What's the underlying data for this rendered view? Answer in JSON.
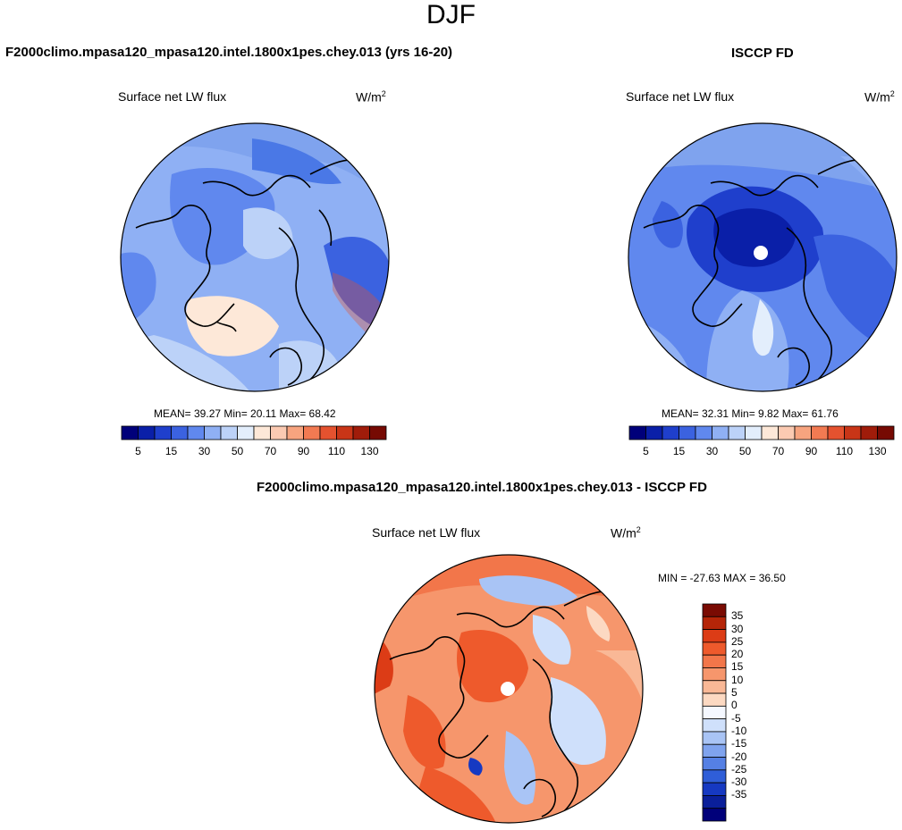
{
  "figure": {
    "season": "DJF",
    "model_title": "F2000climo.mpasa120_mpasa120.intel.1800x1pes.chey.013 (yrs 16-20)",
    "obs_title": "ISCCP FD",
    "diff_title": "F2000climo.mpasa120_mpasa120.intel.1800x1pes.chey.013 - ISCCP FD"
  },
  "panels": {
    "model": {
      "variable": "Surface net LW flux",
      "units_base": "W/m",
      "units_exp": "2",
      "stats": "MEAN=  39.27  Min=  20.11  Max=  68.42"
    },
    "obs": {
      "variable": "Surface net LW flux",
      "units_base": "W/m",
      "units_exp": "2",
      "stats": "MEAN=  32.31  Min=   9.82  Max=  61.76"
    },
    "diff": {
      "variable": "Surface net LW flux",
      "units_base": "W/m",
      "units_exp": "2",
      "stats": "MIN = -27.63 MAX =  36.50"
    }
  },
  "colorbars": {
    "main": {
      "orientation": "horizontal",
      "labels": [
        "5",
        "15",
        "30",
        "50",
        "70",
        "90",
        "110",
        "130"
      ],
      "colors": [
        "#00007a",
        "#0a1fa8",
        "#1f3fcc",
        "#3b62e0",
        "#6088ee",
        "#8fb0f4",
        "#bcd2f8",
        "#e3eefc",
        "#fde8d8",
        "#fbcab2",
        "#f7a47f",
        "#f27a52",
        "#e5522f",
        "#c93517",
        "#a01c0a",
        "#760a03"
      ]
    },
    "diff": {
      "orientation": "vertical",
      "labels": [
        "35",
        "30",
        "25",
        "20",
        "15",
        "10",
        "5",
        "0",
        "-5",
        "-10",
        "-15",
        "-20",
        "-25",
        "-30",
        "-35"
      ],
      "colors": [
        "#7a0b03",
        "#b52508",
        "#dc3c16",
        "#ee5a2c",
        "#f2764a",
        "#f6966c",
        "#f9b896",
        "#fcd9c2",
        "#f5f8ff",
        "#cfe0fb",
        "#a9c4f5",
        "#7fa3ee",
        "#5580e4",
        "#2f5ed8",
        "#1639c2",
        "#0a1f9a",
        "#00007a"
      ]
    }
  },
  "colors": {
    "ocean_light": "#a9c4f5",
    "ocean_mid": "#7fa3ee",
    "ocean_dark": "#4a78e6",
    "deep": "#1f3fcc",
    "diff_warm": "#f2764a",
    "diff_warm2": "#f9b896",
    "coast": "#000000"
  }
}
